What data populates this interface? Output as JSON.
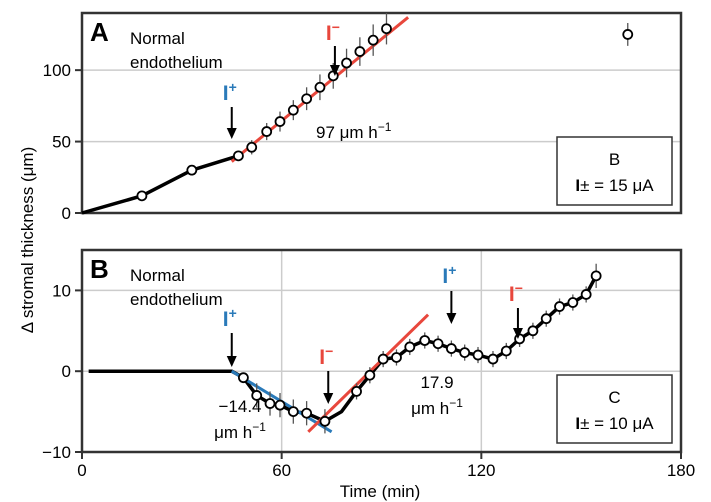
{
  "colors": {
    "blue": "#2a7ab9",
    "red": "#e8473c",
    "data": "#000000",
    "grid": "#cccccc",
    "errorbar": "#555555"
  },
  "chart_data": [
    {
      "id": "A",
      "type": "line",
      "panel_label": "A",
      "annotation": [
        "Normal",
        "endothelium"
      ],
      "ylim": [
        0,
        140
      ],
      "xlim": [
        0,
        180
      ],
      "yticks": [
        0,
        50,
        100
      ],
      "ytick_labels": [
        "0",
        "50",
        "100"
      ],
      "grid_y": [
        50,
        100
      ],
      "data_line": [
        [
          0,
          0
        ],
        [
          18,
          12
        ],
        [
          33,
          30
        ],
        [
          47,
          40
        ]
      ],
      "points": [
        {
          "x": 18,
          "y": 12,
          "err": 0
        },
        {
          "x": 33,
          "y": 30,
          "err": 0
        },
        {
          "x": 47,
          "y": 40,
          "err": 3
        },
        {
          "x": 51,
          "y": 46,
          "err": 5
        },
        {
          "x": 55.5,
          "y": 57,
          "err": 6
        },
        {
          "x": 59.5,
          "y": 64,
          "err": 7
        },
        {
          "x": 63.5,
          "y": 72,
          "err": 7
        },
        {
          "x": 67.5,
          "y": 80,
          "err": 8
        },
        {
          "x": 71.5,
          "y": 88,
          "err": 9
        },
        {
          "x": 75.5,
          "y": 96,
          "err": 9
        },
        {
          "x": 79.5,
          "y": 105,
          "err": 10
        },
        {
          "x": 83.5,
          "y": 113,
          "err": 10
        },
        {
          "x": 87.5,
          "y": 121,
          "err": 11
        },
        {
          "x": 91.5,
          "y": 129,
          "err": 11
        },
        {
          "x": 164,
          "y": 125,
          "err": 8
        }
      ],
      "fit_lines": [
        {
          "color": "red",
          "from": [
            45,
            36
          ],
          "to": [
            98,
            137
          ],
          "label": [
            "97 μm h",
            "−1"
          ]
        }
      ],
      "arrows": [
        {
          "x": 45,
          "color": "blue",
          "ion": "I",
          "sign": "+"
        },
        {
          "x": 76,
          "color": "red",
          "ion": "I",
          "sign": "−"
        }
      ],
      "inset_box": {
        "line1": "B",
        "line2_ion": "I",
        "line2_sign": "±",
        "line2_value": " = 15 μA"
      }
    },
    {
      "id": "B",
      "type": "line",
      "panel_label": "B",
      "annotation": [
        "Normal",
        "endothelium"
      ],
      "ylim": [
        -10,
        15
      ],
      "xlim": [
        0,
        180
      ],
      "xticks": [
        0,
        60,
        120,
        180
      ],
      "xtick_labels": [
        "0",
        "60",
        "120",
        "180"
      ],
      "yticks": [
        -10,
        0,
        10
      ],
      "ytick_labels": [
        "−10",
        "0",
        "10"
      ],
      "grid_x": [
        60,
        120
      ],
      "grid_y": [
        0,
        10
      ],
      "data_line": [
        [
          2,
          0
        ],
        [
          45,
          0
        ],
        [
          48.5,
          -0.8
        ],
        [
          52.5,
          -3
        ],
        [
          56.5,
          -4
        ],
        [
          59.5,
          -4.2
        ],
        [
          63.5,
          -5
        ],
        [
          67.5,
          -5.2
        ],
        [
          73,
          -6.2
        ],
        [
          78,
          -5
        ],
        [
          82.5,
          -2.5
        ],
        [
          86.5,
          -0.5
        ],
        [
          90.5,
          1.5
        ],
        [
          94.5,
          1.7
        ],
        [
          98.5,
          3
        ],
        [
          103,
          3.8
        ],
        [
          107,
          3.4
        ],
        [
          111,
          2.8
        ],
        [
          115,
          2.3
        ],
        [
          119,
          2
        ],
        [
          123.5,
          1.5
        ],
        [
          127.5,
          2.5
        ],
        [
          131.5,
          4
        ],
        [
          135.5,
          5
        ],
        [
          139.5,
          6.5
        ],
        [
          143.5,
          8
        ],
        [
          147.5,
          8.5
        ],
        [
          151.5,
          9.5
        ],
        [
          154.5,
          11.8
        ]
      ],
      "points": [
        {
          "x": 48.5,
          "y": -0.8,
          "err": 0.5
        },
        {
          "x": 52.5,
          "y": -3,
          "err": 1.5
        },
        {
          "x": 56.5,
          "y": -4,
          "err": 1.5
        },
        {
          "x": 59.5,
          "y": -4.2,
          "err": 1.5
        },
        {
          "x": 63.5,
          "y": -5,
          "err": 1.5
        },
        {
          "x": 67.5,
          "y": -5.2,
          "err": 1.5
        },
        {
          "x": 73,
          "y": -6.2,
          "err": 1.5
        },
        {
          "x": 82.5,
          "y": -2.5,
          "err": 1
        },
        {
          "x": 86.5,
          "y": -0.5,
          "err": 1
        },
        {
          "x": 90.5,
          "y": 1.5,
          "err": 1
        },
        {
          "x": 94.5,
          "y": 1.7,
          "err": 1
        },
        {
          "x": 98.5,
          "y": 3,
          "err": 1
        },
        {
          "x": 103,
          "y": 3.8,
          "err": 1
        },
        {
          "x": 107,
          "y": 3.4,
          "err": 1
        },
        {
          "x": 111,
          "y": 2.8,
          "err": 1
        },
        {
          "x": 115,
          "y": 2.3,
          "err": 1
        },
        {
          "x": 119,
          "y": 2,
          "err": 1
        },
        {
          "x": 123.5,
          "y": 1.5,
          "err": 1
        },
        {
          "x": 127.5,
          "y": 2.5,
          "err": 1
        },
        {
          "x": 131.5,
          "y": 4,
          "err": 1
        },
        {
          "x": 135.5,
          "y": 5,
          "err": 1
        },
        {
          "x": 139.5,
          "y": 6.5,
          "err": 1
        },
        {
          "x": 143.5,
          "y": 8,
          "err": 1
        },
        {
          "x": 147.5,
          "y": 8.5,
          "err": 1
        },
        {
          "x": 151.5,
          "y": 9.5,
          "err": 1
        },
        {
          "x": 154.5,
          "y": 11.8,
          "err": 1.5
        }
      ],
      "fit_lines": [
        {
          "color": "blue",
          "from": [
            45,
            0
          ],
          "to": [
            75,
            -7.5
          ]
        },
        {
          "color": "red",
          "from": [
            68,
            -7.5
          ],
          "to": [
            104,
            7
          ]
        }
      ],
      "fit_labels": [
        {
          "x": 38,
          "y": -6.8,
          "lines": [
            "−14.4",
            "μm h"
          ],
          "sup": "−1"
        },
        {
          "x": 100,
          "y": -5.2,
          "lines": [
            "17.9",
            "μm h"
          ],
          "sup": "−1"
        }
      ],
      "arrows": [
        {
          "x": 45,
          "color": "blue",
          "ion": "I",
          "sign": "+"
        },
        {
          "x": 74,
          "color": "red",
          "ion": "I",
          "sign": "−"
        },
        {
          "x": 111,
          "color": "blue",
          "ion": "I",
          "sign": "+"
        },
        {
          "x": 131,
          "color": "red",
          "ion": "I",
          "sign": "−"
        }
      ],
      "inset_box": {
        "line1": "C",
        "line2_ion": "I",
        "line2_sign": "±",
        "line2_value": " = 10 μA"
      }
    }
  ],
  "xlabel": "Time (min)",
  "ylabel": "Δ stromal thickness (μm)"
}
